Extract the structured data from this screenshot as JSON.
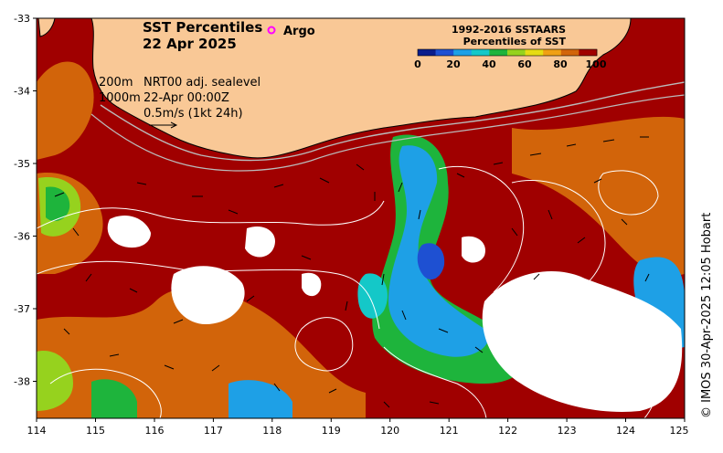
{
  "title": {
    "line1": "SST Percentiles",
    "line2": "22 Apr 2025"
  },
  "legend": {
    "argo_label": "Argo",
    "colorbar_title_1": "1992-2016 SSTAARS",
    "colorbar_title_2": "Percentiles of SST",
    "ticks": [
      "0",
      "20",
      "40",
      "60",
      "80",
      "100"
    ],
    "colors": [
      "#0a1d8c",
      "#1e50d2",
      "#1ea0e6",
      "#14c8c8",
      "#1eb43c",
      "#96d21e",
      "#e6dc14",
      "#f0a014",
      "#d2640a",
      "#a00000"
    ]
  },
  "annotations": {
    "depth_200": "200m",
    "depth_1000": "1000m",
    "nrt_line1": "NRT00 adj. sealevel",
    "nrt_line2": "22-Apr 00:00Z",
    "scale_label": "0.5m/s (1kt 24h)"
  },
  "axes": {
    "x_ticks": [
      "114",
      "115",
      "116",
      "117",
      "118",
      "119",
      "120",
      "121",
      "122",
      "123",
      "124",
      "125"
    ],
    "y_ticks": [
      "-33",
      "-34",
      "-35",
      "-36",
      "-37",
      "-38"
    ]
  },
  "credit": "© IMOS 30-Apr-2025 12:05 Hobart",
  "colors": {
    "land": "#f9c896",
    "warm_dark": "#a00000",
    "warm_orange": "#d2640a",
    "cool_cyan": "#1ea0e6",
    "no_data": "#ffffff"
  }
}
